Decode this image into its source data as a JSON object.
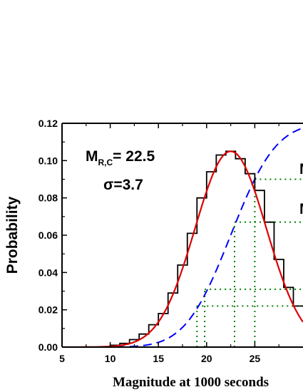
{
  "chart_data": {
    "type": "line",
    "title": "",
    "xlabel": "Magnitude at 1000 seconds",
    "ylabel": "Probability",
    "xlim": [
      5,
      30
    ],
    "ylim": [
      0,
      0.12
    ],
    "x_ticks": [
      5,
      10,
      15,
      20,
      25
    ],
    "y_ticks": [
      0.0,
      0.02,
      0.04,
      0.06,
      0.08,
      0.1,
      0.12
    ],
    "y_tick_labels": [
      "0.00",
      "0.02",
      "0.04",
      "0.06",
      "0.08",
      "0.10",
      "0.12"
    ],
    "annotations": {
      "mrc_main": "M",
      "mrc_sub": "R,C",
      "mrc_value": "= 22.5",
      "sigma": "σ=3.7",
      "right_m1": "M",
      "right_m2": "M"
    },
    "histogram": {
      "color": "#000000",
      "bin_width": 1,
      "bins_start": [
        10,
        11,
        12,
        13,
        14,
        15,
        16,
        17,
        18,
        19,
        20,
        21,
        22,
        23,
        24,
        25,
        26,
        27,
        28,
        29
      ],
      "values": [
        0.001,
        0.002,
        0.004,
        0.007,
        0.012,
        0.018,
        0.029,
        0.044,
        0.061,
        0.08,
        0.094,
        0.103,
        0.105,
        0.101,
        0.093,
        0.084,
        0.067,
        0.047,
        0.032,
        0.022
      ]
    },
    "gaussian_fit": {
      "color": "#e00000",
      "mean": 22.5,
      "sigma": 3.7,
      "amplitude": 0.105
    },
    "cumulative": {
      "color": "#0000ff",
      "style": "dashed",
      "mean": 22.5,
      "sigma": 3.7,
      "scale": 0.12
    },
    "guide_lines": {
      "color": "#008000",
      "style": "dotted",
      "lines": [
        {
          "x": 19.0,
          "y": 0.022
        },
        {
          "x": 19.8,
          "y": 0.031
        },
        {
          "x": 22.9,
          "y": 0.067
        },
        {
          "x": 25.0,
          "y": 0.09
        }
      ]
    }
  }
}
